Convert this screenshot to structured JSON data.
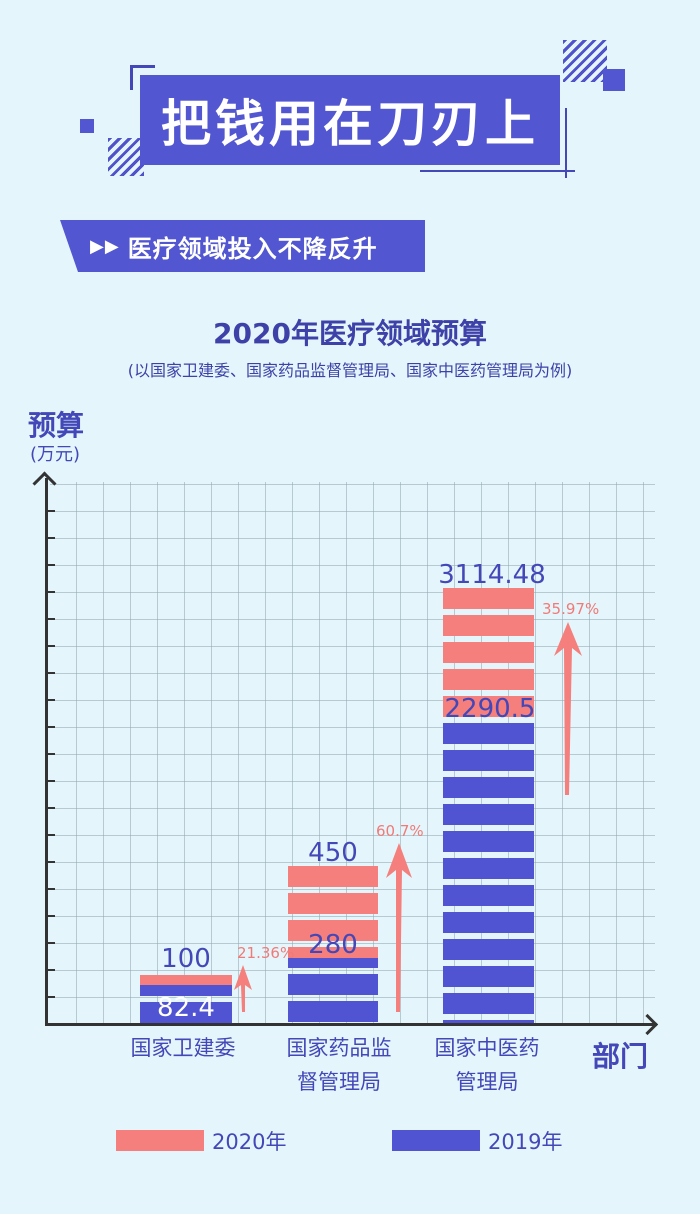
{
  "header": {
    "title": "把钱用在刀刃上",
    "banner_icon": "double-chevron-right-icon",
    "banner_text": "医疗领域投入不降反升"
  },
  "chart_data": {
    "type": "bar",
    "title": "2020年医疗领域预算",
    "subtitle": "(以国家卫建委、国家药品监督管理局、国家中医药管理局为例)",
    "ylabel": "预算",
    "yunit": "(万元)",
    "xlabel": "部门",
    "categories": [
      "国家卫建委",
      "国家药品监督管理局",
      "国家中医药管理局"
    ],
    "category_lines": [
      [
        "国家卫建委"
      ],
      [
        "国家药品监",
        "督管理局"
      ],
      [
        "国家中医药",
        "管理局"
      ]
    ],
    "series": [
      {
        "name": "2020年",
        "color": "#f47f7c",
        "values": [
          100,
          450,
          3114.48
        ]
      },
      {
        "name": "2019年",
        "color": "#5054d2",
        "values": [
          82.4,
          280,
          2290.5
        ]
      }
    ],
    "value_labels_2020": [
      "100",
      "450",
      "3114.48"
    ],
    "value_labels_2019": [
      "82.4",
      "280",
      "2290.5"
    ],
    "growth_labels": [
      "21.36%",
      "60.7%",
      "35.97%"
    ],
    "grid": true,
    "ylim": [
      0,
      3500
    ]
  },
  "legend": {
    "items": [
      {
        "label": "2020年",
        "color": "#f47f7c"
      },
      {
        "label": "2019年",
        "color": "#5054d2"
      }
    ]
  }
}
